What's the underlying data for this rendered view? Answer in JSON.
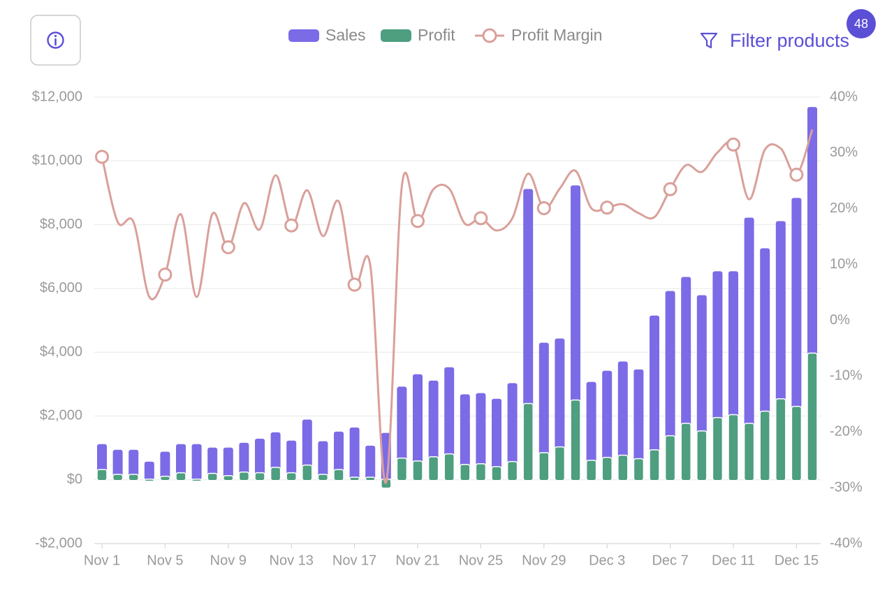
{
  "chart_data": {
    "type": "bar",
    "categories": [
      "Nov 1",
      null,
      null,
      null,
      "Nov 5",
      null,
      null,
      null,
      "Nov 9",
      null,
      null,
      null,
      "Nov 13",
      null,
      null,
      null,
      "Nov 17",
      null,
      null,
      null,
      "Nov 21",
      null,
      null,
      null,
      "Nov 25",
      null,
      null,
      null,
      "Nov 29",
      null,
      null,
      null,
      "Dec 3",
      null,
      null,
      null,
      "Dec 7",
      null,
      null,
      null,
      "Dec 11",
      null,
      null,
      null,
      "Dec 15",
      null
    ],
    "series": [
      {
        "name": "Sales",
        "type": "bar",
        "color": "#7b6be6",
        "values": [
          1120,
          940,
          940,
          570,
          880,
          1120,
          1120,
          1010,
          1010,
          1160,
          1290,
          1490,
          1230,
          1890,
          1210,
          1510,
          1640,
          1070,
          1470,
          2920,
          3310,
          3110,
          3530,
          2680,
          2720,
          2540,
          3030,
          9120,
          4300,
          4430,
          9230,
          3070,
          3420,
          3710,
          3460,
          5150,
          5920,
          6360,
          5790,
          6540,
          6540,
          8220,
          7260,
          8110,
          8840,
          11690
        ]
      },
      {
        "name": "Profit",
        "type": "bar",
        "color": "#4e9e80",
        "values": [
          300,
          150,
          150,
          0,
          90,
          200,
          0,
          180,
          110,
          220,
          200,
          370,
          200,
          440,
          150,
          300,
          60,
          60,
          -240,
          660,
          570,
          700,
          790,
          460,
          480,
          390,
          550,
          2370,
          830,
          1010,
          2480,
          590,
          680,
          750,
          640,
          920,
          1360,
          1750,
          1510,
          1930,
          2020,
          1750,
          2130,
          2520,
          2280,
          3950
        ]
      },
      {
        "name": "Profit Margin",
        "type": "line",
        "axis": "y2",
        "color": "#d9a09a",
        "values": [
          29.3,
          17.6,
          17.6,
          4.2,
          8.2,
          19.0,
          4.2,
          19.1,
          13.1,
          21.0,
          16.3,
          26.0,
          17.0,
          23.3,
          15.1,
          21.3,
          6.4,
          9.8,
          -29.0,
          24.1,
          17.8,
          23.5,
          23.6,
          17.3,
          18.3,
          16.1,
          18.3,
          26.3,
          20.1,
          23.6,
          26.8,
          20.1,
          20.2,
          20.8,
          19.2,
          18.5,
          23.5,
          27.8,
          26.6,
          30.1,
          31.5,
          21.7,
          30.6,
          30.8,
          26.1,
          34.2
        ]
      }
    ],
    "ylim": [
      -2000,
      12000
    ],
    "yticks": [
      {
        "value": -2000,
        "label": "-$2,000"
      },
      {
        "value": 0,
        "label": "$0"
      },
      {
        "value": 2000,
        "label": "$2,000"
      },
      {
        "value": 4000,
        "label": "$4,000"
      },
      {
        "value": 6000,
        "label": "$6,000"
      },
      {
        "value": 8000,
        "label": "$8,000"
      },
      {
        "value": 10000,
        "label": "$10,000"
      },
      {
        "value": 12000,
        "label": "$12,000"
      }
    ],
    "y2lim": [
      -40,
      40
    ],
    "y2ticks": [
      {
        "value": -40,
        "label": "-40%"
      },
      {
        "value": -30,
        "label": "-30%"
      },
      {
        "value": -20,
        "label": "-20%"
      },
      {
        "value": -10,
        "label": "-10%"
      },
      {
        "value": 0,
        "label": "0%"
      },
      {
        "value": 10,
        "label": "10%"
      },
      {
        "value": 20,
        "label": "20%"
      },
      {
        "value": 30,
        "label": "30%"
      },
      {
        "value": 40,
        "label": "40%"
      }
    ],
    "grid": true
  },
  "filter": {
    "label": "Filter products",
    "badge": 48
  }
}
